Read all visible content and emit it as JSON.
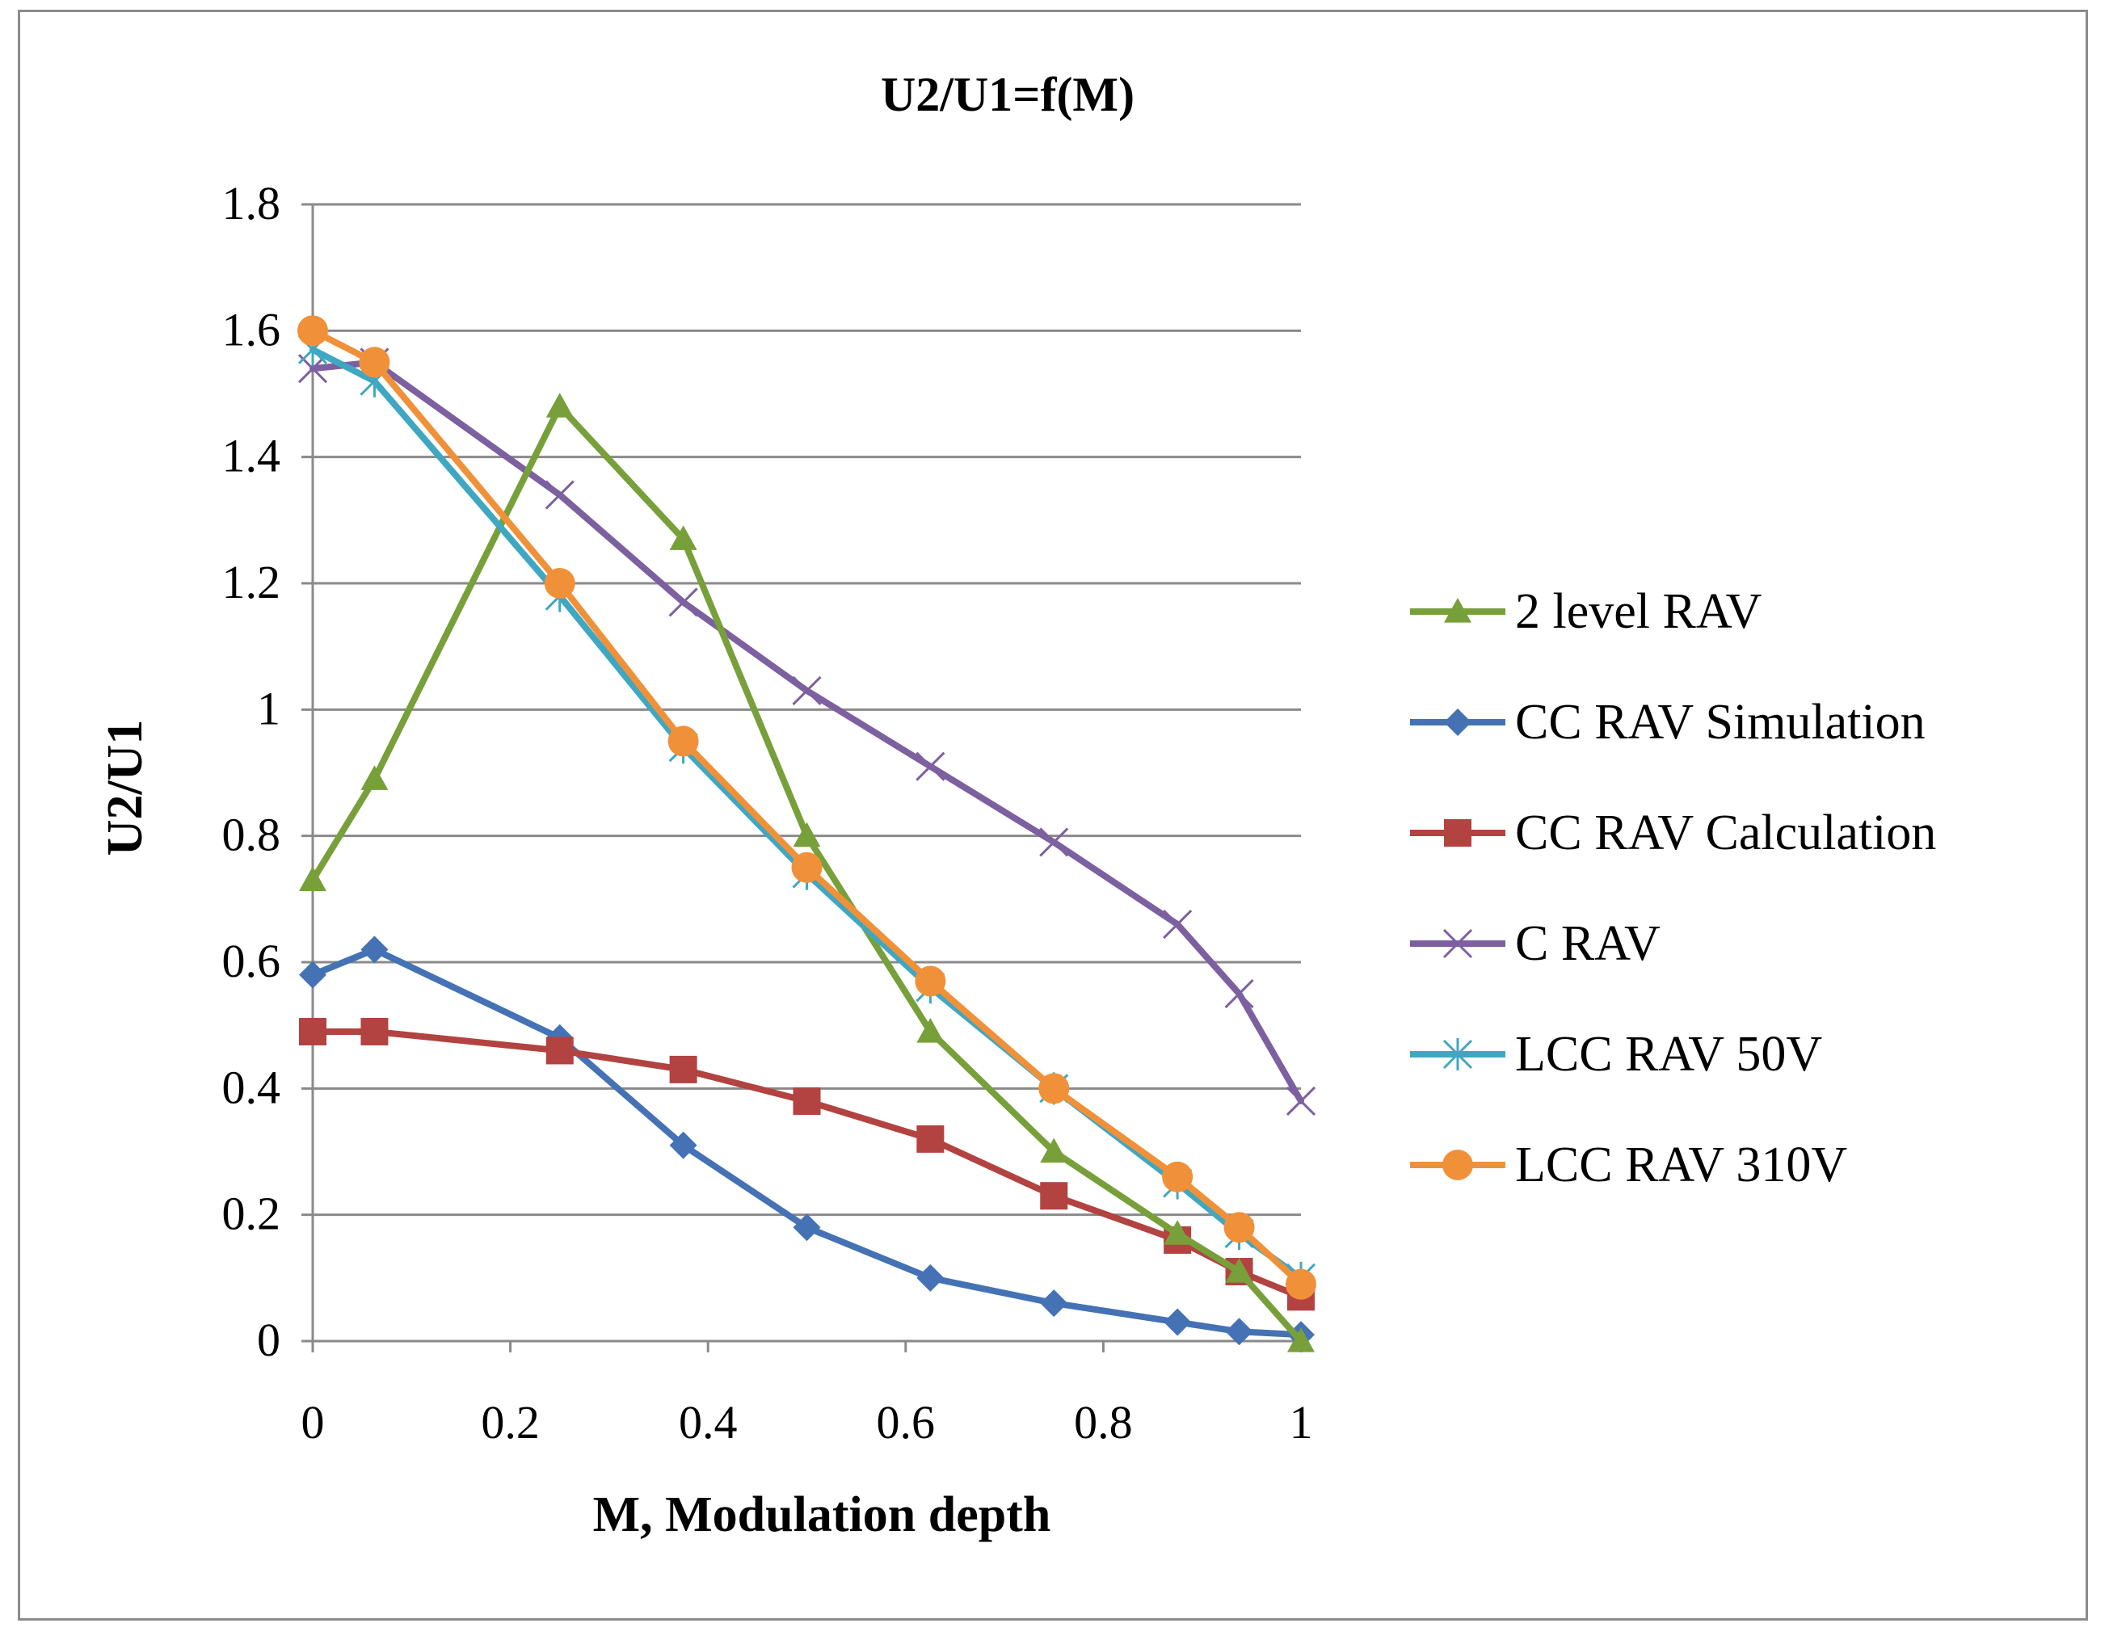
{
  "chart_data": {
    "type": "line",
    "title": "U2/U1=f(M)",
    "xlabel": "M, Modulation depth",
    "ylabel": "U2/U1",
    "xlim": [
      0,
      1
    ],
    "ylim": [
      0,
      1.8
    ],
    "x_ticks": [
      "0",
      "0.2",
      "0.4",
      "0.6",
      "0.8",
      "1"
    ],
    "y_ticks": [
      "0",
      "0.2",
      "0.4",
      "0.6",
      "0.8",
      "1",
      "1.2",
      "1.4",
      "1.6",
      "1.8"
    ],
    "grid": "horizontal",
    "legend_position": "right",
    "series": [
      {
        "name": "2 level RAV",
        "color": "#77a03a",
        "marker": "triangle",
        "x": [
          0,
          0.0625,
          0.25,
          0.375,
          0.5,
          0.625,
          0.75,
          0.875,
          0.9375,
          1
        ],
        "y": [
          0.73,
          0.89,
          1.48,
          1.27,
          0.8,
          0.49,
          0.3,
          0.17,
          0.11,
          0.0
        ]
      },
      {
        "name": "CC RAV Simulation",
        "color": "#4472b4",
        "marker": "diamond",
        "x": [
          0,
          0.0625,
          0.25,
          0.375,
          0.5,
          0.625,
          0.75,
          0.875,
          0.9375,
          1
        ],
        "y": [
          0.58,
          0.62,
          0.48,
          0.31,
          0.18,
          0.1,
          0.06,
          0.03,
          0.015,
          0.01
        ]
      },
      {
        "name": "CC RAV Calculation",
        "color": "#b24341",
        "marker": "square",
        "x": [
          0,
          0.0625,
          0.25,
          0.375,
          0.5,
          0.625,
          0.75,
          0.875,
          0.9375,
          1
        ],
        "y": [
          0.49,
          0.49,
          0.46,
          0.43,
          0.38,
          0.32,
          0.23,
          0.16,
          0.11,
          0.07
        ]
      },
      {
        "name": "C RAV",
        "color": "#7d60a0",
        "marker": "x",
        "x": [
          0,
          0.0625,
          0.25,
          0.375,
          0.5,
          0.625,
          0.75,
          0.875,
          0.9375,
          1
        ],
        "y": [
          1.54,
          1.55,
          1.34,
          1.17,
          1.03,
          0.91,
          0.79,
          0.66,
          0.55,
          0.38
        ]
      },
      {
        "name": "LCC RAV 50V",
        "color": "#3fa7c1",
        "marker": "star",
        "x": [
          0,
          0.0625,
          0.25,
          0.375,
          0.5,
          0.625,
          0.75,
          0.875,
          0.9375,
          1
        ],
        "y": [
          1.57,
          1.52,
          1.18,
          0.94,
          0.74,
          0.56,
          0.4,
          0.25,
          0.17,
          0.1
        ]
      },
      {
        "name": "LCC RAV 310V",
        "color": "#f0913a",
        "marker": "circle",
        "x": [
          0,
          0.0625,
          0.25,
          0.375,
          0.5,
          0.625,
          0.75,
          0.875,
          0.9375,
          1
        ],
        "y": [
          1.6,
          1.55,
          1.2,
          0.95,
          0.75,
          0.57,
          0.4,
          0.26,
          0.18,
          0.09
        ]
      }
    ]
  }
}
